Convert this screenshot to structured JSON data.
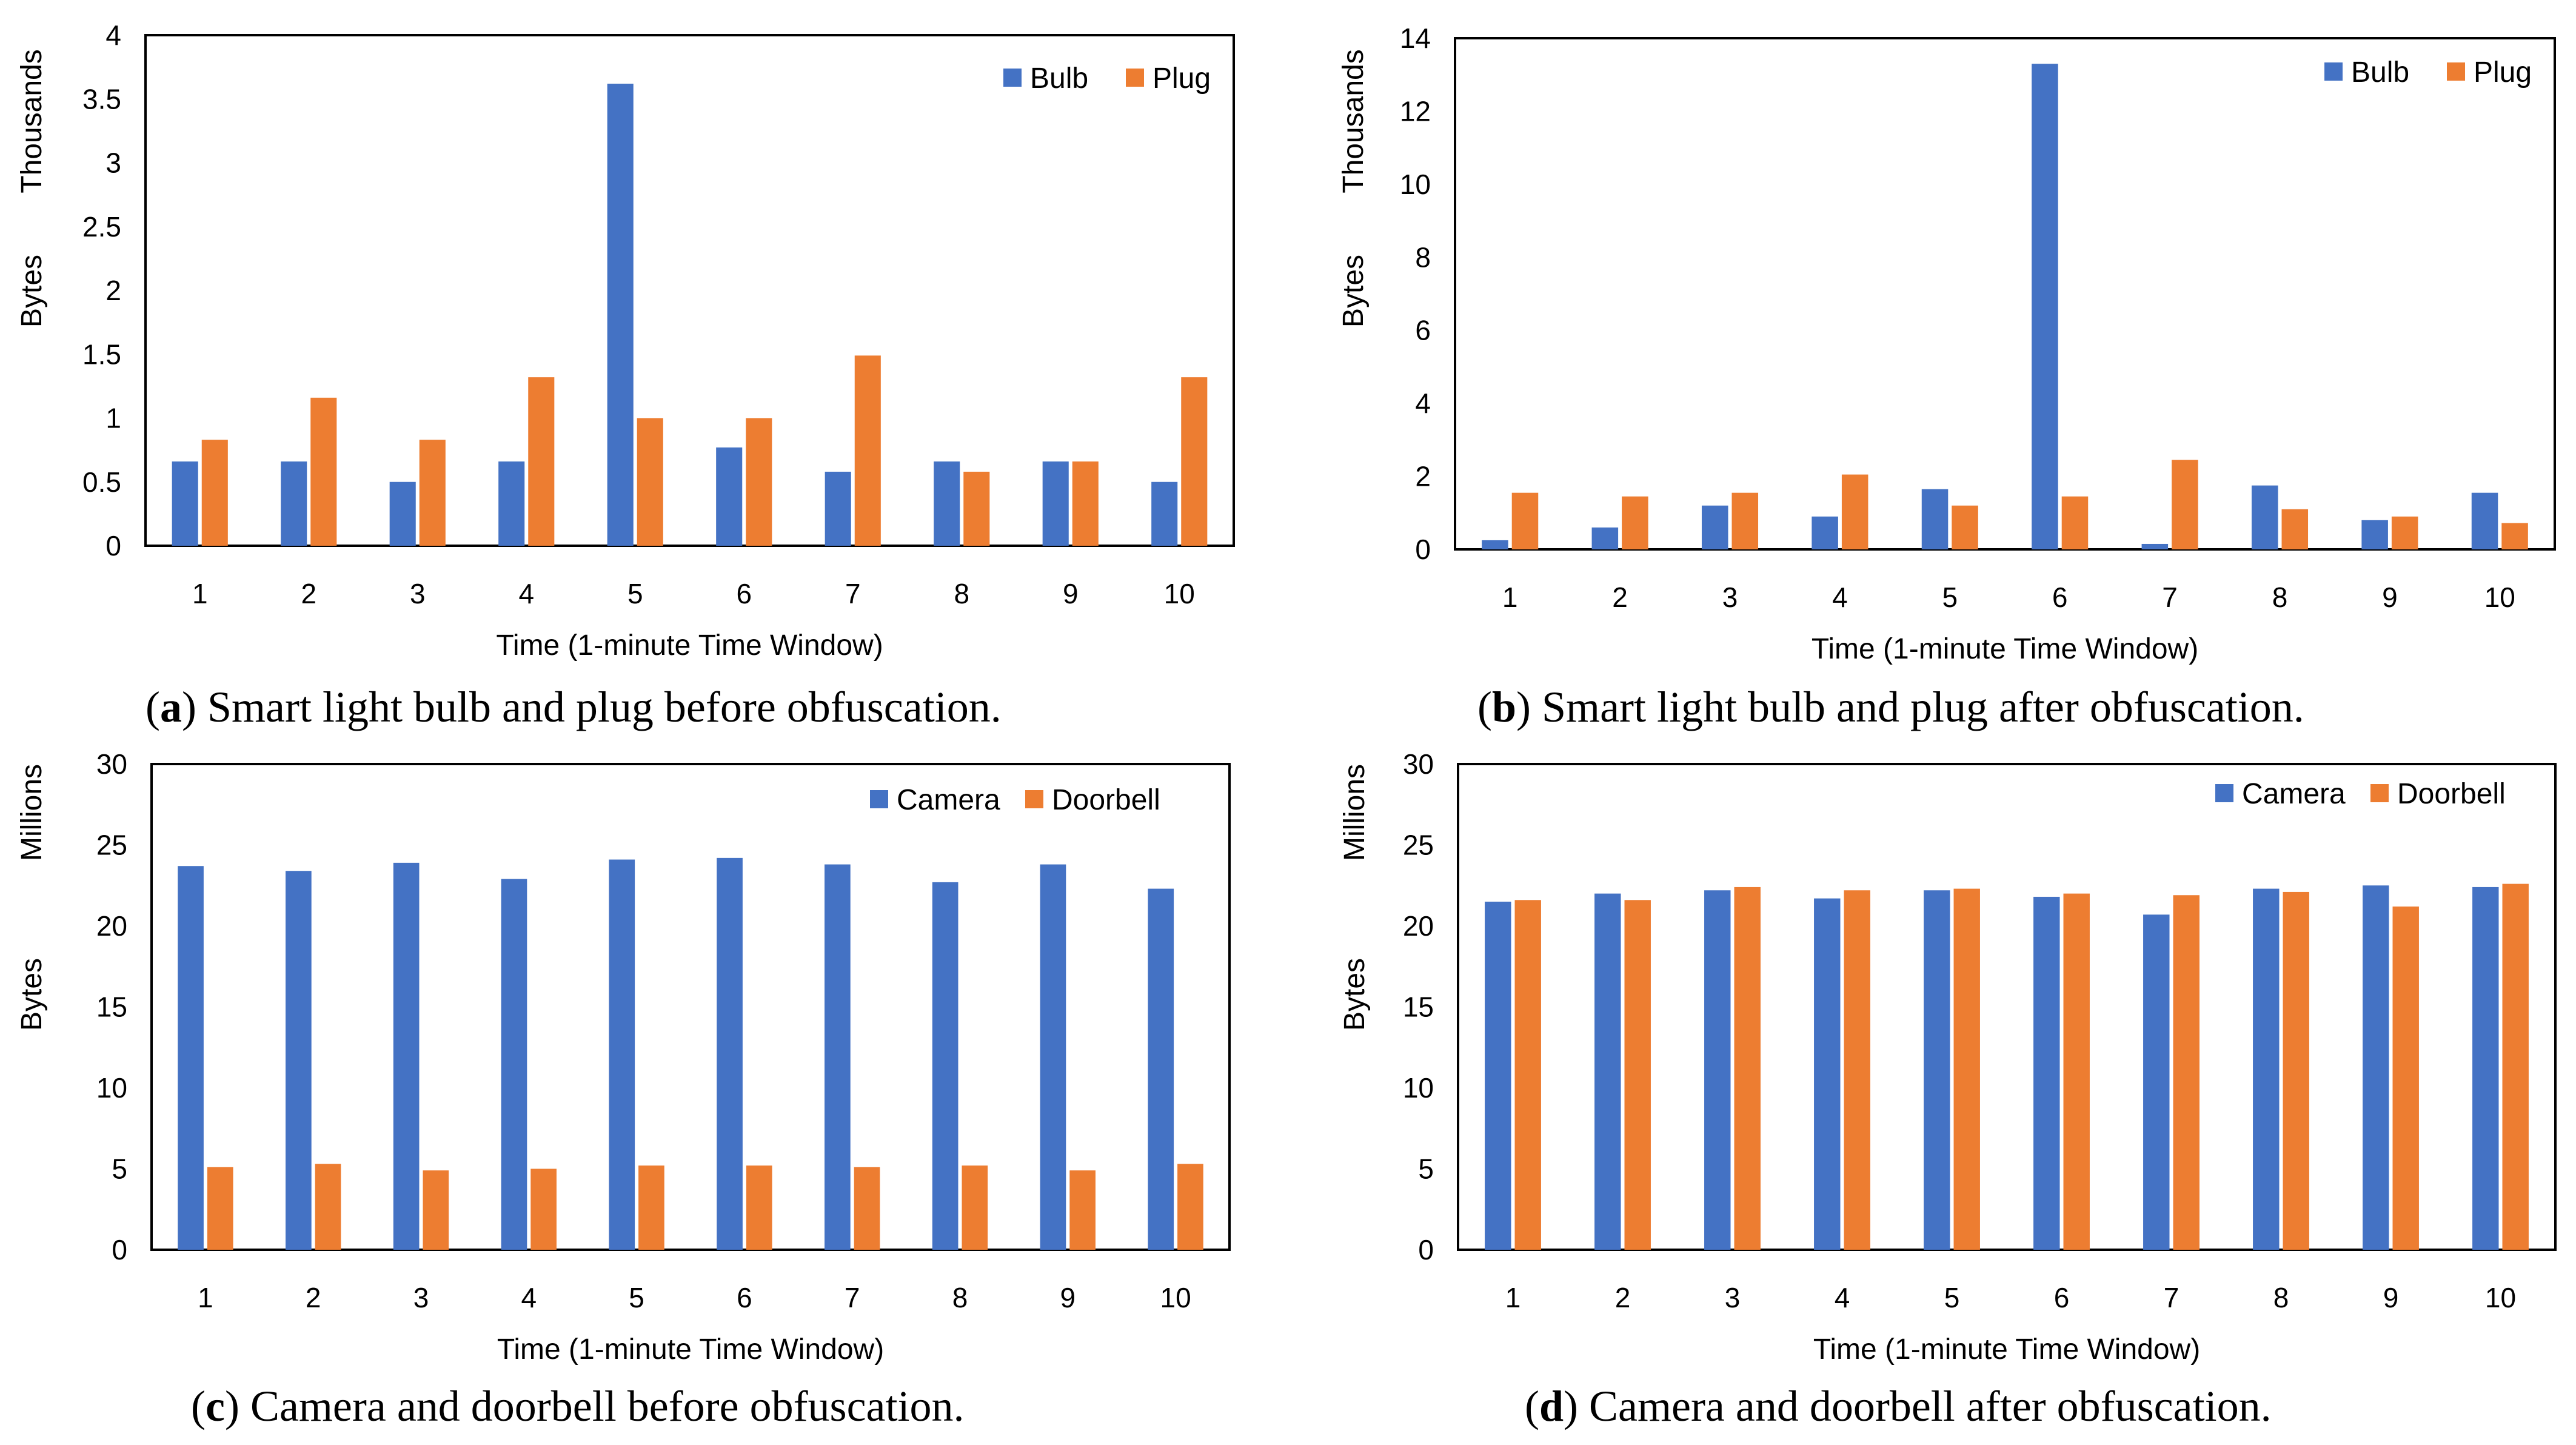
{
  "colors": {
    "series1": "#4472C4",
    "series2": "#ED7D31",
    "axis": "#000000"
  },
  "chart_data": [
    {
      "id": "a",
      "type": "bar",
      "title": "",
      "categories": [
        "1",
        "2",
        "3",
        "4",
        "5",
        "6",
        "7",
        "8",
        "9",
        "10"
      ],
      "series": [
        {
          "name": "Bulb",
          "values": [
            0.66,
            0.66,
            0.5,
            0.66,
            3.62,
            0.77,
            0.58,
            0.66,
            0.66,
            0.5
          ]
        },
        {
          "name": "Plug",
          "values": [
            0.83,
            1.16,
            0.83,
            1.32,
            1.0,
            1.0,
            1.49,
            0.58,
            0.66,
            1.32
          ]
        }
      ],
      "xlabel": "Time (1-minute Time Window)",
      "ylabel": "Bytes",
      "yunit": "Thousands",
      "ylim": [
        0,
        4
      ],
      "yticks": [
        "0",
        "0.5",
        "1",
        "1.5",
        "2",
        "2.5",
        "3",
        "3.5",
        "4"
      ],
      "legend": "top-right",
      "caption_label": "a",
      "caption_text": "Smart light bulb and plug before obfuscation."
    },
    {
      "id": "b",
      "type": "bar",
      "title": "",
      "categories": [
        "1",
        "2",
        "3",
        "4",
        "5",
        "6",
        "7",
        "8",
        "9",
        "10"
      ],
      "series": [
        {
          "name": "Bulb",
          "values": [
            0.25,
            0.6,
            1.2,
            0.9,
            1.65,
            13.3,
            0.15,
            1.75,
            0.8,
            1.55
          ]
        },
        {
          "name": "Plug",
          "values": [
            1.55,
            1.45,
            1.55,
            2.05,
            1.2,
            1.45,
            2.45,
            1.1,
            0.9,
            0.72
          ]
        }
      ],
      "xlabel": "Time (1-minute Time Window)",
      "ylabel": "Bytes",
      "yunit": "Thousands",
      "ylim": [
        0,
        14
      ],
      "yticks": [
        "0",
        "2",
        "4",
        "6",
        "8",
        "10",
        "12",
        "14"
      ],
      "legend": "top-right",
      "caption_label": "b",
      "caption_text": "Smart light bulb and plug after obfuscation."
    },
    {
      "id": "c",
      "type": "bar",
      "title": "",
      "categories": [
        "1",
        "2",
        "3",
        "4",
        "5",
        "6",
        "7",
        "8",
        "9",
        "10"
      ],
      "series": [
        {
          "name": "Camera",
          "values": [
            23.7,
            23.4,
            23.9,
            22.9,
            24.1,
            24.2,
            23.8,
            22.7,
            23.8,
            22.3
          ]
        },
        {
          "name": "Doorbell",
          "values": [
            5.1,
            5.3,
            4.9,
            5.0,
            5.2,
            5.2,
            5.1,
            5.2,
            4.9,
            5.3
          ]
        }
      ],
      "xlabel": "Time (1-minute Time Window)",
      "ylabel": "Bytes",
      "yunit": "Millions",
      "ylim": [
        0,
        30
      ],
      "yticks": [
        "0",
        "5",
        "10",
        "15",
        "20",
        "25",
        "30"
      ],
      "legend": "top-right",
      "caption_label": "c",
      "caption_text": "Camera and doorbell before obfuscation."
    },
    {
      "id": "d",
      "type": "bar",
      "title": "",
      "categories": [
        "1",
        "2",
        "3",
        "4",
        "5",
        "6",
        "7",
        "8",
        "9",
        "10"
      ],
      "series": [
        {
          "name": "Camera",
          "values": [
            21.5,
            22.0,
            22.2,
            21.7,
            22.2,
            21.8,
            20.7,
            22.3,
            22.5,
            22.4
          ]
        },
        {
          "name": "Doorbell",
          "values": [
            21.6,
            21.6,
            22.4,
            22.2,
            22.3,
            22.0,
            21.9,
            22.1,
            21.2,
            22.6
          ]
        }
      ],
      "xlabel": "Time (1-minute Time Window)",
      "ylabel": "Bytes",
      "yunit": "Millions",
      "ylim": [
        0,
        30
      ],
      "yticks": [
        "0",
        "5",
        "10",
        "15",
        "20",
        "25",
        "30"
      ],
      "legend": "top-right",
      "caption_label": "d",
      "caption_text": "Camera and doorbell after obfuscation."
    }
  ]
}
